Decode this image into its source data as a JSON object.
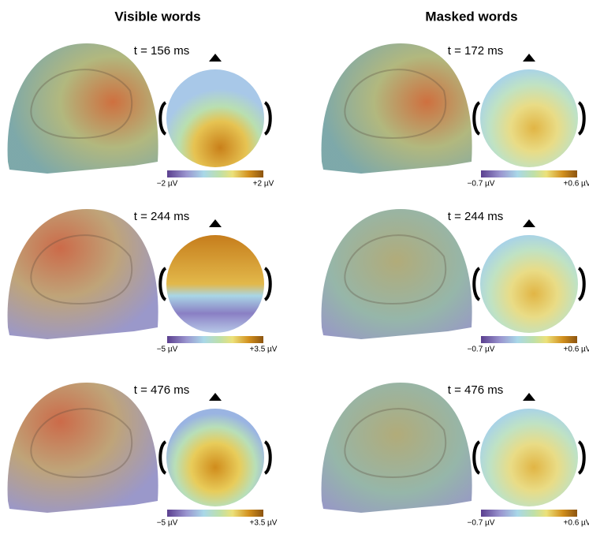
{
  "columns": [
    {
      "title": "Visible words",
      "panels": [
        {
          "time": "t = 156 ms",
          "scale_min": "−2 µV",
          "scale_max": "+2 µV"
        },
        {
          "time": "t = 244 ms",
          "scale_min": "−5 µV",
          "scale_max": "+3.5 µV"
        },
        {
          "time": "t = 476 ms",
          "scale_min": "−5 µV",
          "scale_max": "+3.5 µV"
        }
      ]
    },
    {
      "title": "Masked words",
      "panels": [
        {
          "time": "t = 172 ms",
          "scale_min": "−0.7 µV",
          "scale_max": "+0.6 µV"
        },
        {
          "time": "t = 244 ms",
          "scale_min": "−0.7 µV",
          "scale_max": "+0.6 µV"
        },
        {
          "time": "t = 476 ms",
          "scale_min": "−0.7 µV",
          "scale_max": "+0.6 µV"
        }
      ]
    }
  ]
}
